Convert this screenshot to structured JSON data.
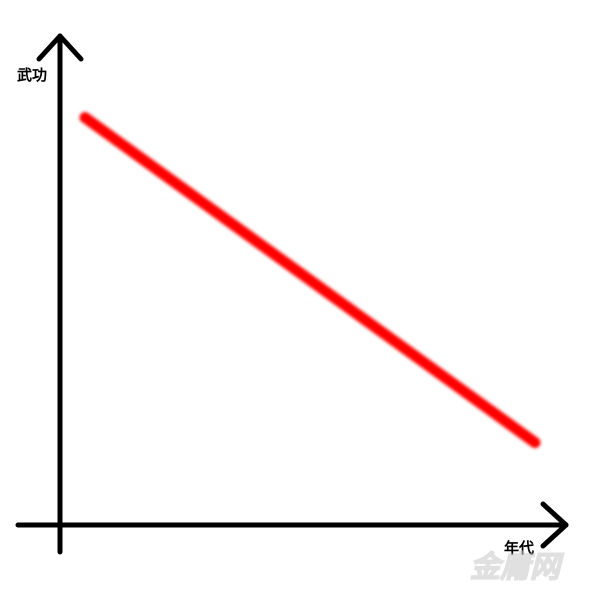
{
  "chart_data": {
    "type": "line",
    "title": "",
    "xlabel": "年代",
    "ylabel": "武功",
    "x": [
      0.05,
      0.95
    ],
    "series": [
      {
        "values": [
          0.84,
          0.17
        ]
      }
    ],
    "xlim": [
      0,
      1
    ],
    "ylim": [
      0,
      1
    ],
    "ticks": "none",
    "grid": false,
    "legend": "none",
    "colors": {
      "line": "#ff0000",
      "axis": "#000000"
    }
  },
  "watermark": {
    "text": "金庸网"
  }
}
